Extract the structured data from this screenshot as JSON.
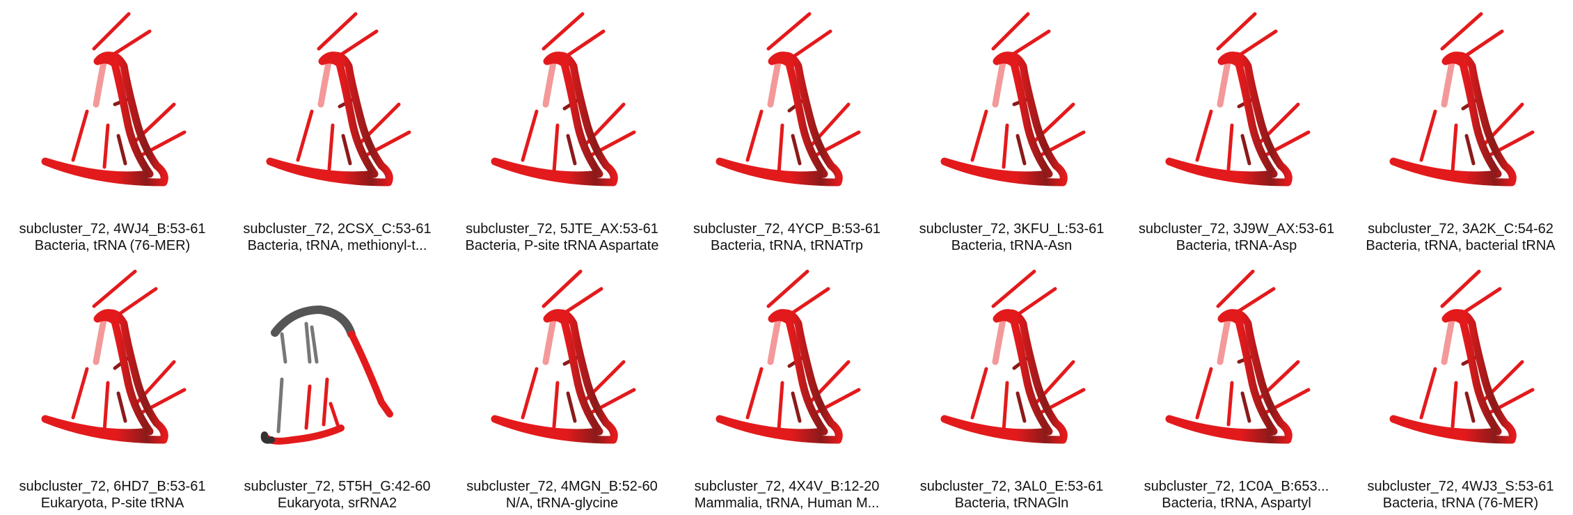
{
  "colors": {
    "backbone": "#e31a1c",
    "backbone_dark": "#8b1a1a",
    "backbone_light": "#f08080",
    "backbone_grey": "#555555",
    "caption_text": "#111111",
    "background": "#ffffff"
  },
  "rows": [
    [
      {
        "title": "subcluster_72, 4WJ4_B:53-61",
        "subtitle": "Bacteria, tRNA (76-MER)",
        "style": "normal"
      },
      {
        "title": "subcluster_72, 2CSX_C:53-61",
        "subtitle": "Bacteria, tRNA, methionyl-t...",
        "style": "normal"
      },
      {
        "title": "subcluster_72, 5JTE_AX:53-61",
        "subtitle": "Bacteria, P-site tRNA Aspartate",
        "style": "normal"
      },
      {
        "title": "subcluster_72, 4YCP_B:53-61",
        "subtitle": "Bacteria, tRNA, tRNATrp",
        "style": "normal"
      },
      {
        "title": "subcluster_72, 3KFU_L:53-61",
        "subtitle": "Bacteria, tRNA-Asn",
        "style": "normal"
      },
      {
        "title": "subcluster_72, 3J9W_AX:53-61",
        "subtitle": "Bacteria, tRNA-Asp",
        "style": "normal"
      },
      {
        "title": "subcluster_72, 3A2K_C:54-62",
        "subtitle": "Bacteria, tRNA, bacterial tRNA",
        "style": "normal"
      }
    ],
    [
      {
        "title": "subcluster_72, 6HD7_B:53-61",
        "subtitle": "Eukaryota, P-site tRNA",
        "style": "normal"
      },
      {
        "title": "subcluster_72, 5T5H_G:42-60",
        "subtitle": "Eukaryota, srRNA2",
        "style": "outlier"
      },
      {
        "title": "subcluster_72, 4MGN_B:52-60",
        "subtitle": "N/A, tRNA-glycine",
        "style": "normal"
      },
      {
        "title": "subcluster_72, 4X4V_B:12-20",
        "subtitle": "Mammalia, tRNA, Human M...",
        "style": "normal"
      },
      {
        "title": "subcluster_72, 3AL0_E:53-61",
        "subtitle": "Bacteria, tRNAGln",
        "style": "normal"
      },
      {
        "title": "subcluster_72, 1C0A_B:653...",
        "subtitle": "Bacteria, tRNA, Aspartyl",
        "style": "normal"
      },
      {
        "title": "subcluster_72, 4WJ3_S:53-61",
        "subtitle": "Bacteria, tRNA (76-MER)",
        "style": "normal"
      }
    ]
  ]
}
